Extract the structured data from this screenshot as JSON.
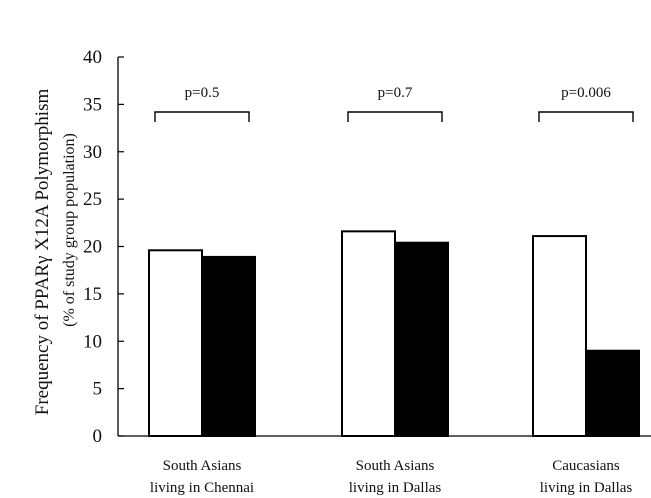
{
  "chart_data": {
    "type": "bar",
    "title": "",
    "xlabel": "",
    "ylabel": "Frequency of  PPARγ X12A Polymorphism",
    "ylabel_sub": "(% of study group population)",
    "ylim": [
      0,
      40
    ],
    "yticks": [
      0,
      5,
      10,
      15,
      20,
      25,
      30,
      35,
      40
    ],
    "grid": false,
    "legend": "none",
    "categories": [
      [
        "South Asians",
        "living in Chennai"
      ],
      [
        "South Asians",
        "living in Dallas"
      ],
      [
        "Caucasians",
        "living in Dallas"
      ]
    ],
    "series": [
      {
        "fill": "#ffffff",
        "values": [
          19.6,
          21.6,
          21.1
        ]
      },
      {
        "fill": "#000000",
        "values": [
          18.9,
          20.4,
          9.0
        ]
      }
    ],
    "annotations": [
      "p=0.5",
      "p=0.7",
      "p=0.006"
    ]
  }
}
